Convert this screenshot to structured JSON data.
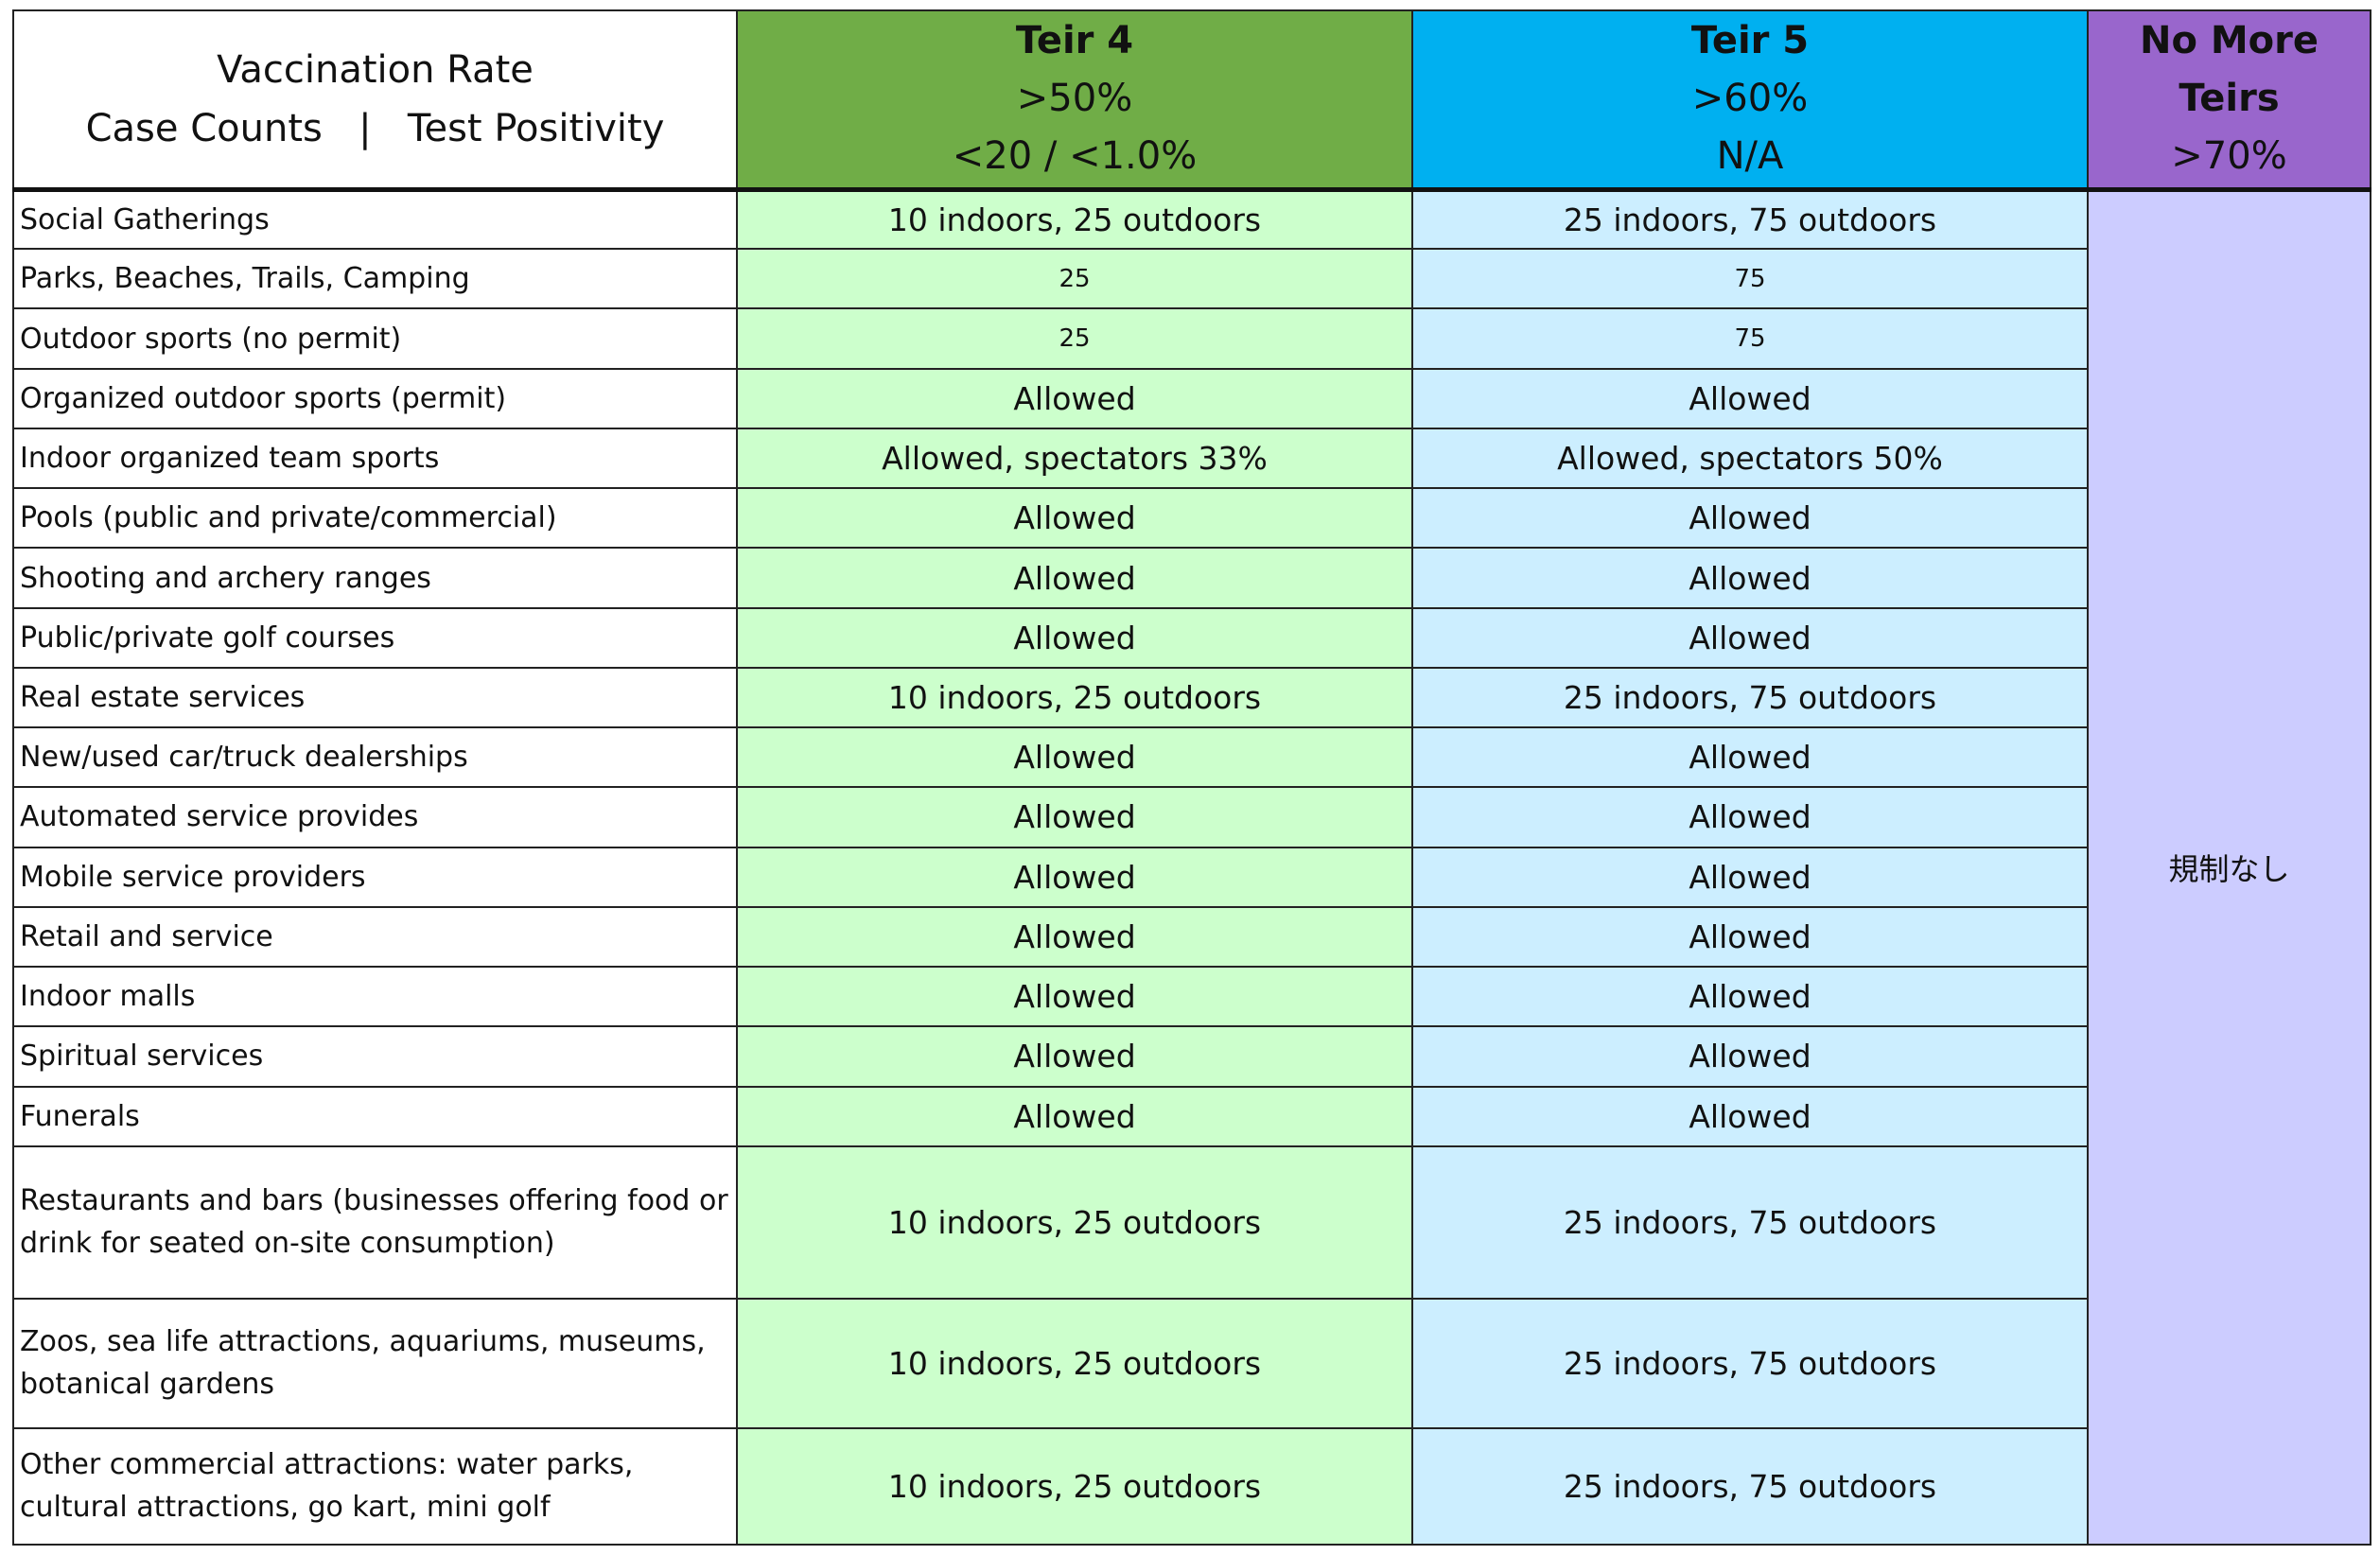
{
  "header": {
    "line1": "Vaccination Rate",
    "line2_left": "Case Counts",
    "line2_sep": "|",
    "line2_right": "Test Positivity",
    "tiers": [
      {
        "name": "Teir 4",
        "vaccination": ">50%",
        "cases": "<20 / <1.0%",
        "color": "#70ad47"
      },
      {
        "name": "Teir 5",
        "vaccination": ">60%",
        "cases": "N/A",
        "color": "#00b0f0"
      },
      {
        "name_line1": "No More",
        "name_line2": "Teirs",
        "vaccination": ">70%",
        "color": "#9966cc"
      }
    ]
  },
  "no_restrictions": "規制なし",
  "rows": [
    {
      "activity": "Social Gatherings",
      "tier4": "10 indoors, 25 outdoors",
      "tier5": "25 indoors, 75 outdoors"
    },
    {
      "activity": "Parks, Beaches, Trails, Camping",
      "tier4": "25",
      "tier5": "75"
    },
    {
      "activity": "Outdoor sports (no permit)",
      "tier4": "25",
      "tier5": "75"
    },
    {
      "activity": "Organized outdoor sports (permit)",
      "tier4": "Allowed",
      "tier5": "Allowed"
    },
    {
      "activity": "Indoor organized team sports",
      "tier4": "Allowed, spectators 33%",
      "tier5": "Allowed, spectators 50%"
    },
    {
      "activity": "Pools (public and private/commercial)",
      "tier4": "Allowed",
      "tier5": "Allowed"
    },
    {
      "activity": "Shooting and archery ranges",
      "tier4": "Allowed",
      "tier5": "Allowed"
    },
    {
      "activity": "Public/private golf courses",
      "tier4": "Allowed",
      "tier5": "Allowed"
    },
    {
      "activity": "Real estate services",
      "tier4": "10 indoors, 25 outdoors",
      "tier5": "25 indoors, 75 outdoors"
    },
    {
      "activity": "New/used car/truck dealerships",
      "tier4": "Allowed",
      "tier5": "Allowed"
    },
    {
      "activity": "Automated service provides",
      "tier4": "Allowed",
      "tier5": "Allowed"
    },
    {
      "activity": "Mobile service providers",
      "tier4": "Allowed",
      "tier5": "Allowed"
    },
    {
      "activity": "Retail and service",
      "tier4": "Allowed",
      "tier5": "Allowed"
    },
    {
      "activity": "Indoor malls",
      "tier4": "Allowed",
      "tier5": "Allowed"
    },
    {
      "activity": "Spiritual services",
      "tier4": "Allowed",
      "tier5": "Allowed"
    },
    {
      "activity": "Funerals",
      "tier4": "Allowed",
      "tier5": "Allowed"
    },
    {
      "activity": "Restaurants and bars (businesses offering food or drink for seated on-site consumption)",
      "tier4": "10 indoors, 25 outdoors",
      "tier5": "25 indoors, 75 outdoors"
    },
    {
      "activity": "Zoos, sea life attractions, aquariums, museums, botanical gardens",
      "tier4": "10 indoors, 25 outdoors",
      "tier5": "25 indoors, 75 outdoors"
    },
    {
      "activity": "Other commercial attractions: water parks, cultural attractions, go kart, mini golf",
      "tier4": "10 indoors, 25 outdoors",
      "tier5": "25 indoors, 75 outdoors"
    }
  ]
}
